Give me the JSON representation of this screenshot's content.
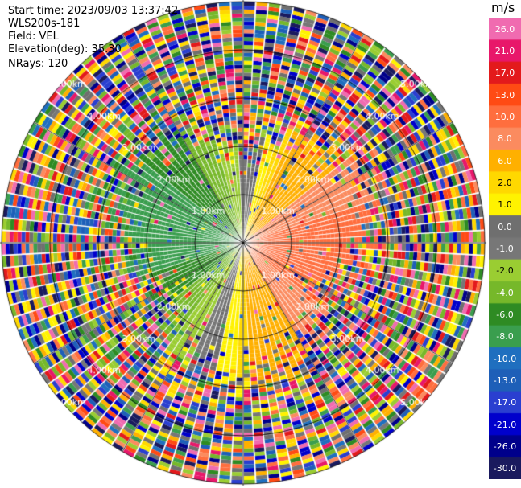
{
  "info": {
    "start_time": "Start time: 2023/09/03 13:37:42",
    "instrument": "WLS200s-181",
    "field": "Field: VEL",
    "elevation": "Elevation(deg): 35.30",
    "nrays": "NRays: 120"
  },
  "colorbar": {
    "unit": "m/s",
    "ticks": [
      "26.0",
      "21.0",
      "17.0",
      "13.0",
      "10.0",
      "8.0",
      "6.0",
      "2.0",
      "1.0",
      "0.0",
      "-1.0",
      "-2.0",
      "-4.0",
      "-6.0",
      "-8.0",
      "-10.0",
      "-13.0",
      "-17.0",
      "-21.0",
      "-26.0",
      "-30.0"
    ],
    "colors": [
      "#f06bb0",
      "#e8176a",
      "#e31a1c",
      "#ff4b14",
      "#ff6e3e",
      "#fb8b5f",
      "#ffb000",
      "#ffd800",
      "#fff200",
      "#6f6f6f",
      "#777777",
      "#9acd32",
      "#76b82a",
      "#2e8b23",
      "#3a9e4e",
      "#1f6fbf",
      "#1e5fb8",
      "#2a3fd0",
      "#0000cc",
      "#00008b",
      "#1a1a5e"
    ]
  },
  "range_labels": [
    "1.00km",
    "2.00km",
    "3.00km",
    "4.00km",
    "5.00km"
  ]
}
